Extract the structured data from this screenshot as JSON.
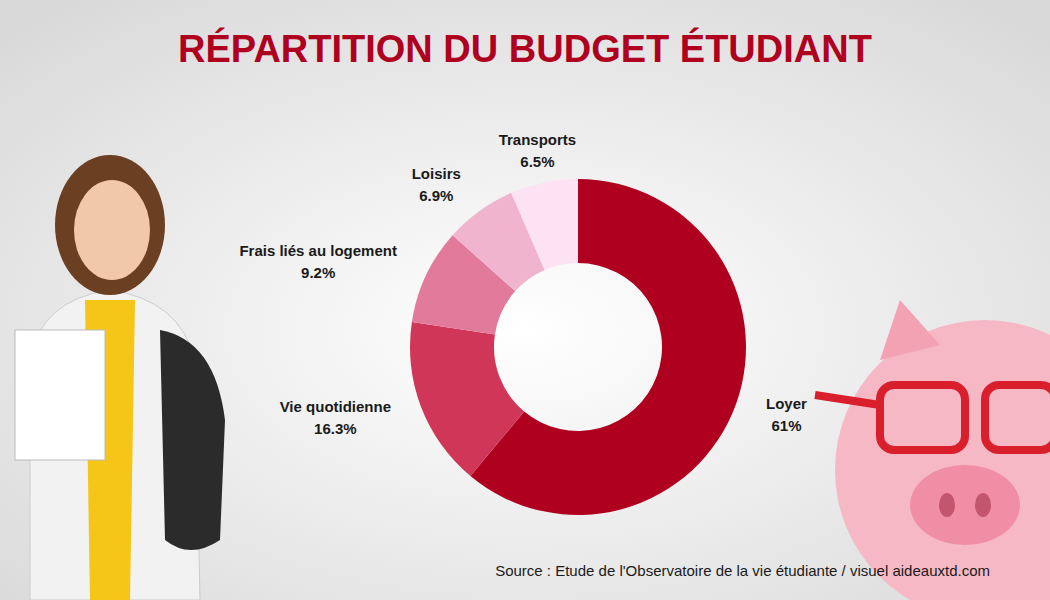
{
  "chart_data": {
    "type": "donut",
    "title": "RÉPARTITION DU BUDGET ÉTUDIANT",
    "categories": [
      "Loyer",
      "Vie quotidienne",
      "Frais liés au logement",
      "Loisirs",
      "Transports"
    ],
    "values": [
      61,
      16.3,
      9.2,
      6.9,
      6.5
    ],
    "value_labels": [
      "61%",
      "16.3%",
      "9.2%",
      "6.9%",
      "6.5%"
    ],
    "colors": [
      "#b0001f",
      "#d03658",
      "#e27a9c",
      "#f0b4cf",
      "#fde2f4"
    ],
    "data_labels": true,
    "source": "Source : Etude de l'Observatoire de la vie étudiante / visuel aideauxtd.com"
  }
}
